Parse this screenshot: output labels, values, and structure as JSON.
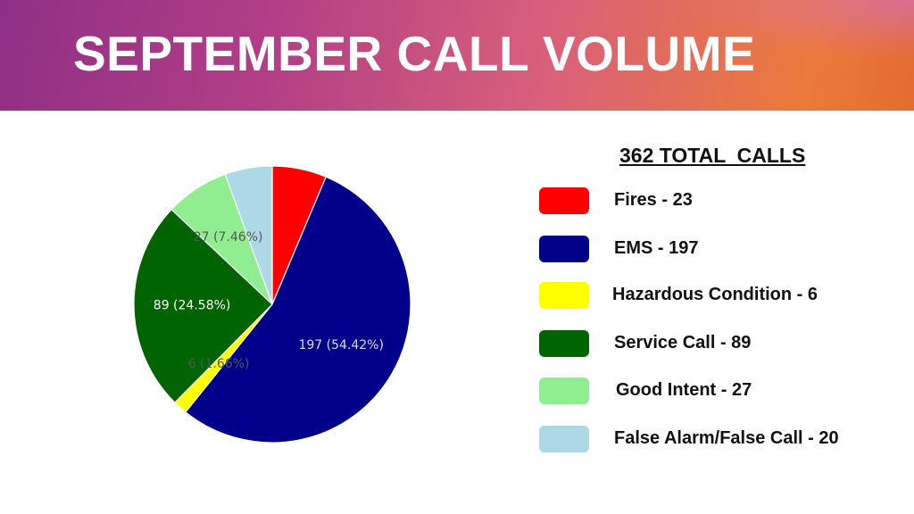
{
  "header": {
    "title": "SEPTEMBER CALL VOLUME"
  },
  "summary": {
    "total_label": "362 TOTAL  CALLS"
  },
  "legend": [
    {
      "label": "Fires - 23",
      "color": "#ff0000"
    },
    {
      "label": "EMS - 197",
      "color": "#00008b"
    },
    {
      "label": "Hazardous Condition - 6",
      "color": "#ffff00"
    },
    {
      "label": "Service Call - 89",
      "color": "#006400"
    },
    {
      "label": "Good Intent - 27",
      "color": "#90ee90"
    },
    {
      "label": "False Alarm/False Call - 20",
      "color": "#add8e6"
    }
  ],
  "chart_data": {
    "type": "pie",
    "categories": [
      "Fires",
      "EMS",
      "Hazardous Condition",
      "Service Call",
      "Good Intent",
      "False Alarm/False Call"
    ],
    "values": [
      23,
      197,
      6,
      89,
      27,
      20
    ],
    "colors": [
      "#ff0000",
      "#00008b",
      "#ffff00",
      "#006400",
      "#90ee90",
      "#add8e6"
    ],
    "data_labels": [
      "",
      "197 (54.42%)",
      "6 (1.66%)",
      "89 (24.58%)",
      "27 (7.46%)",
      ""
    ],
    "label_colors": [
      "#ffffff",
      "#dddddd",
      "#555555",
      "#ffffff",
      "#555555",
      "#555555"
    ],
    "start_angle_deg": 0,
    "direction": "clockwise",
    "total": 362
  }
}
